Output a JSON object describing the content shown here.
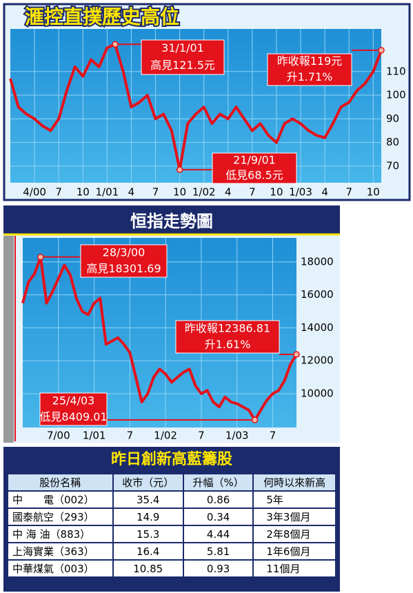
{
  "chart_data": [
    {
      "type": "line",
      "title": "滙控直撲歷史高位",
      "categories": [
        null,
        null,
        null,
        "4/00",
        null,
        null,
        "7",
        null,
        null,
        "10",
        null,
        null,
        "1/01",
        null,
        null,
        "4",
        null,
        null,
        "7",
        null,
        null,
        "10",
        null,
        null,
        "1/02",
        null,
        null,
        "4",
        null,
        null,
        "7",
        null,
        null,
        "10",
        null,
        null,
        "1/03",
        null,
        null,
        "4",
        null,
        null,
        "7",
        null,
        null,
        "10",
        null
      ],
      "series": [
        {
          "color": "#e3121b",
          "values": [
            107,
            95,
            92,
            90,
            87,
            85,
            90,
            102,
            112,
            108,
            115,
            112,
            120,
            121.5,
            110,
            95,
            97,
            100,
            90,
            92,
            85,
            68.5,
            88,
            92,
            95,
            88,
            92,
            90,
            95,
            90,
            85,
            88,
            83,
            80,
            88,
            90,
            88,
            85,
            83,
            82,
            88,
            95,
            97,
            102,
            105,
            110,
            119
          ]
        }
      ],
      "ylim": [
        63,
        128
      ],
      "yticks": [
        70,
        80,
        90,
        100,
        110
      ],
      "grid": true,
      "annotations": [
        {
          "lines": [
            "31/1/01",
            "高見121.5元"
          ]
        },
        {
          "lines": [
            "21/9/01",
            "低見68.5元"
          ]
        },
        {
          "lines": [
            "昨收報119元",
            "升1.71%"
          ]
        }
      ]
    },
    {
      "type": "line",
      "title": "恒指走勢圖",
      "categories": [
        null,
        null,
        null,
        null,
        null,
        null,
        "7/00",
        null,
        null,
        null,
        null,
        null,
        "1/01",
        null,
        null,
        null,
        null,
        null,
        "7",
        null,
        null,
        null,
        null,
        null,
        "1/02",
        null,
        null,
        null,
        null,
        null,
        "7",
        null,
        null,
        null,
        null,
        null,
        "1/03",
        null,
        null,
        null,
        null,
        null,
        "7",
        null,
        null,
        null,
        null
      ],
      "series": [
        {
          "color": "#e3121b",
          "values": [
            15500,
            16800,
            17300,
            18301.69,
            15500,
            16200,
            17000,
            17800,
            17200,
            15800,
            15000,
            14800,
            15500,
            15800,
            13000,
            13200,
            13400,
            13000,
            12500,
            11000,
            9500,
            10000,
            11000,
            11500,
            11200,
            10700,
            11000,
            11300,
            11500,
            10500,
            10000,
            10200,
            9500,
            9200,
            9800,
            9500,
            9400,
            9200,
            9000,
            8409.01,
            9000,
            9600,
            10000,
            10200,
            10800,
            11800,
            12386.81
          ]
        }
      ],
      "ylim": [
        7950,
        19460
      ],
      "yticks": [
        10000,
        12000,
        14000,
        16000,
        18000
      ],
      "grid": true,
      "annotations": [
        {
          "lines": [
            "28/3/00",
            "高見18301.69"
          ]
        },
        {
          "lines": [
            "25/4/03",
            "低見8409.01"
          ]
        },
        {
          "lines": [
            "昨收報12386.81",
            "升1.61%"
          ]
        }
      ]
    }
  ],
  "table": {
    "title": "昨日創新高藍籌股",
    "header": [
      "股份名稱",
      "收市（元）",
      "升幅（%）",
      "何時以來新高"
    ],
    "rows": [
      [
        "中　　電（002）",
        "35.4",
        "0.86",
        "5年"
      ],
      [
        "國泰航空（293）",
        "14.9",
        "0.34",
        "3年3個月"
      ],
      [
        "中 海 油（883）",
        "15.3",
        "4.44",
        "2年8個月"
      ],
      [
        "上海實業（363）",
        "16.4",
        "5.81",
        "1年6個月"
      ],
      [
        "中華煤氣（003）",
        "10.85",
        "0.93",
        "11個月"
      ]
    ]
  }
}
